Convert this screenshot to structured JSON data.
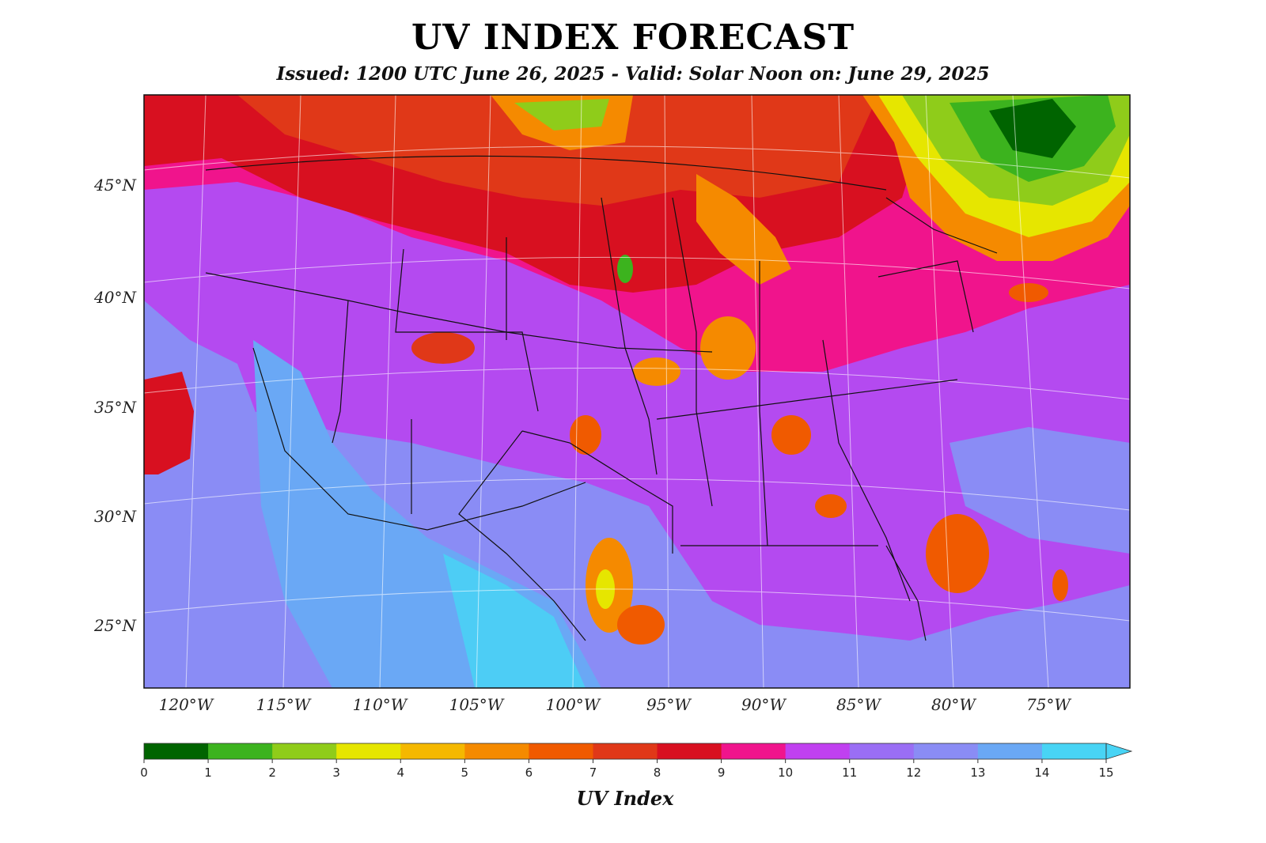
{
  "title": "UV INDEX FORECAST",
  "subtitle": "Issued: 1200 UTC June 26, 2025 - Valid: Solar Noon on: June 29, 2025",
  "map": {
    "lat_labels": [
      "45°N",
      "40°N",
      "35°N",
      "30°N",
      "25°N"
    ],
    "lon_labels": [
      "120°W",
      "115°W",
      "110°W",
      "105°W",
      "100°W",
      "95°W",
      "90°W",
      "85°W",
      "80°W",
      "75°W"
    ],
    "colors": {
      "border": "#111111",
      "gridline": "#ffffff"
    }
  },
  "colorbar": {
    "title": "UV Index",
    "ticks": [
      "0",
      "1",
      "2",
      "3",
      "4",
      "5",
      "6",
      "7",
      "8",
      "9",
      "10",
      "11",
      "12",
      "13",
      "14",
      "15"
    ],
    "colors": [
      "#006400",
      "#3cb31e",
      "#8fcc1a",
      "#e6e600",
      "#f5b800",
      "#f58a00",
      "#f05a00",
      "#e03818",
      "#d81020",
      "#f0148c",
      "#c040f0",
      "#9a6ef5",
      "#8a8cf5",
      "#6aa8f5",
      "#48d4f5"
    ]
  }
}
